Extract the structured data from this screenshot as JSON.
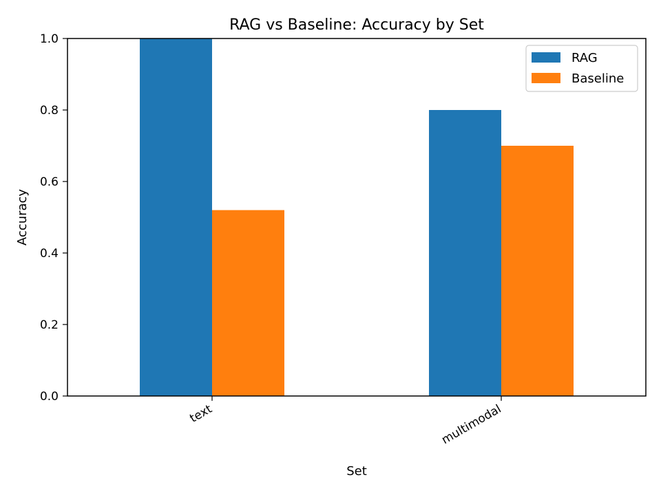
{
  "chart_data": {
    "type": "bar",
    "title": "RAG vs Baseline: Accuracy by Set",
    "xlabel": "Set",
    "ylabel": "Accuracy",
    "categories": [
      "text",
      "multimodal"
    ],
    "series": [
      {
        "name": "RAG",
        "values": [
          1.0,
          0.8
        ],
        "color": "#1f77b4"
      },
      {
        "name": "Baseline",
        "values": [
          0.52,
          0.7
        ],
        "color": "#ff7f0e"
      }
    ],
    "ylim": [
      0,
      1.0
    ],
    "yticks": [
      "0.0",
      "0.2",
      "0.4",
      "0.6",
      "0.8",
      "1.0"
    ],
    "grid": false,
    "legend_position": "top-right"
  }
}
